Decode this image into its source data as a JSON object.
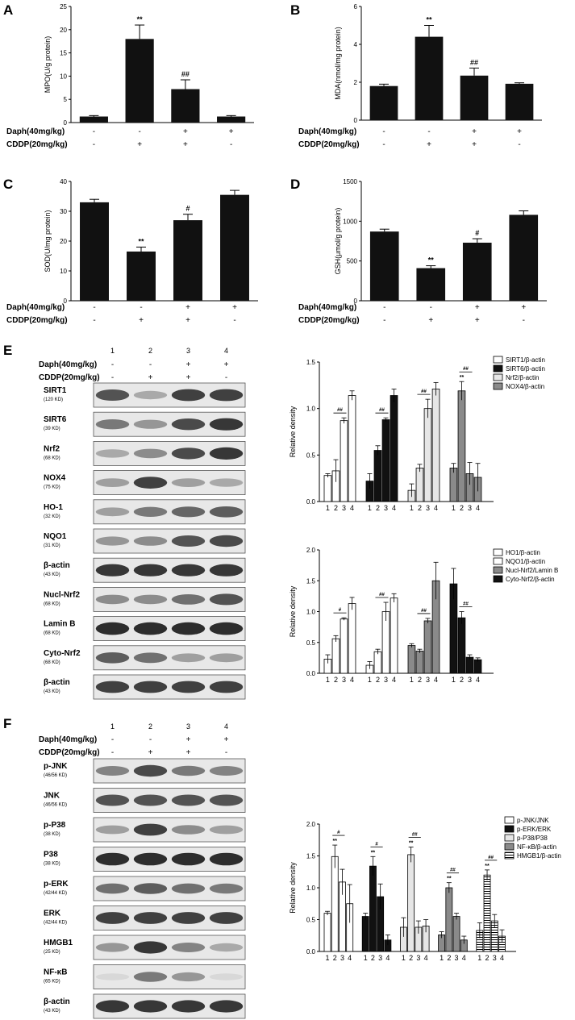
{
  "conditions": {
    "daph_label": "Daph(40mg/kg)",
    "cddp_label": "CDDP(20mg/kg)",
    "daph_signs": [
      "-",
      "-",
      "+",
      "+"
    ],
    "cddp_signs": [
      "-",
      "+",
      "+",
      "-"
    ],
    "lane_numbers": [
      "1",
      "2",
      "3",
      "4"
    ]
  },
  "chart_data": [
    {
      "id": "A",
      "type": "bar",
      "panel_label": "A",
      "ylabel": "MPO(U/g protein)",
      "ylim": [
        0,
        25
      ],
      "yticks": [
        0,
        5,
        10,
        15,
        20,
        25
      ],
      "values": [
        1.3,
        18.0,
        7.2,
        1.3
      ],
      "errors": [
        0.2,
        3.0,
        2.0,
        0.2
      ],
      "marks": [
        "",
        "**",
        "##",
        ""
      ]
    },
    {
      "id": "B",
      "type": "bar",
      "panel_label": "B",
      "ylabel": "MDA(nmol/mg protein)",
      "ylim": [
        0,
        6
      ],
      "yticks": [
        0,
        2,
        4,
        6
      ],
      "values": [
        1.8,
        4.4,
        2.35,
        1.92
      ],
      "errors": [
        0.1,
        0.6,
        0.4,
        0.05
      ],
      "marks": [
        "",
        "**",
        "##",
        ""
      ]
    },
    {
      "id": "C",
      "type": "bar",
      "panel_label": "C",
      "ylabel": "SOD(U/mg protein)",
      "ylim": [
        0,
        40
      ],
      "yticks": [
        0,
        10,
        20,
        30,
        40
      ],
      "values": [
        33,
        16.5,
        27,
        35.5
      ],
      "errors": [
        1.0,
        1.5,
        2.0,
        1.5
      ],
      "marks": [
        "",
        "**",
        "#",
        ""
      ]
    },
    {
      "id": "D",
      "type": "bar",
      "panel_label": "D",
      "ylabel": "GSH(μmol/g protein)",
      "ylim": [
        0,
        1500
      ],
      "yticks": [
        0,
        500,
        1000,
        1500
      ],
      "values": [
        870,
        410,
        730,
        1080
      ],
      "errors": [
        30,
        30,
        50,
        50
      ],
      "marks": [
        "",
        "**",
        "#",
        ""
      ]
    },
    {
      "id": "E1",
      "type": "bar",
      "ylabel": "Relative density",
      "ylim": [
        0,
        1.5
      ],
      "yticks": [
        0.0,
        0.5,
        1.0,
        1.5
      ],
      "categories": [
        "1",
        "2",
        "3",
        "4"
      ],
      "series": [
        {
          "name": "SIRT1/β-actin",
          "pattern": "white",
          "values": [
            0.28,
            0.33,
            0.87,
            1.14
          ],
          "errors": [
            0.02,
            0.12,
            0.03,
            0.05
          ],
          "marks": [
            "",
            "",
            "",
            ""
          ],
          "bracket": "##"
        },
        {
          "name": "SIRT6/β-actin",
          "pattern": "black",
          "values": [
            0.22,
            0.55,
            0.88,
            1.14
          ],
          "errors": [
            0.08,
            0.05,
            0.02,
            0.07
          ],
          "marks": [
            "",
            "",
            "",
            ""
          ],
          "bracket": "##"
        },
        {
          "name": "Nrf2/β-actin",
          "pattern": "lightgray",
          "values": [
            0.12,
            0.36,
            1.0,
            1.21
          ],
          "errors": [
            0.07,
            0.04,
            0.1,
            0.07
          ],
          "marks": [
            "",
            "",
            "",
            ""
          ],
          "bracket": "##"
        },
        {
          "name": "NOX4/β-actin",
          "pattern": "gray",
          "values": [
            0.36,
            1.19,
            0.3,
            0.26
          ],
          "errors": [
            0.05,
            0.1,
            0.12,
            0.15
          ],
          "marks": [
            "",
            "**",
            "",
            ""
          ],
          "bracket": "##"
        }
      ]
    },
    {
      "id": "E2",
      "type": "bar",
      "ylabel": "Relative density",
      "ylim": [
        0,
        2.0
      ],
      "yticks": [
        0.0,
        0.5,
        1.0,
        1.5,
        2.0
      ],
      "categories": [
        "1",
        "2",
        "3",
        "4"
      ],
      "series": [
        {
          "name": "HO1/β-actin",
          "pattern": "white",
          "values": [
            0.23,
            0.56,
            0.88,
            1.13
          ],
          "errors": [
            0.07,
            0.05,
            0.02,
            0.1
          ],
          "marks": [
            "",
            "",
            "",
            ""
          ],
          "bracket": "#"
        },
        {
          "name": "NQO1/β-actin",
          "pattern": "white",
          "values": [
            0.13,
            0.35,
            1.0,
            1.22
          ],
          "errors": [
            0.06,
            0.04,
            0.15,
            0.07
          ],
          "marks": [
            "",
            "",
            "",
            ""
          ],
          "bracket": "##"
        },
        {
          "name": "Nucl-Nrf2/Lamin B",
          "pattern": "gray",
          "values": [
            0.45,
            0.36,
            0.85,
            1.5
          ],
          "errors": [
            0.03,
            0.03,
            0.04,
            0.3
          ],
          "marks": [
            "",
            "",
            "",
            ""
          ],
          "bracket": "##"
        },
        {
          "name": "Cyto-Nrf2/β-actin",
          "pattern": "black",
          "values": [
            1.45,
            0.9,
            0.26,
            0.22
          ],
          "errors": [
            0.25,
            0.1,
            0.04,
            0.03
          ],
          "marks": [
            "",
            "",
            "",
            ""
          ],
          "bracket": "##"
        }
      ]
    },
    {
      "id": "F1",
      "type": "bar",
      "ylabel": "Relative density",
      "ylim": [
        0,
        2.0
      ],
      "yticks": [
        0.0,
        0.5,
        1.0,
        1.5,
        2.0
      ],
      "categories": [
        "1",
        "2",
        "3",
        "4"
      ],
      "series": [
        {
          "name": "p-JNK/JNK",
          "pattern": "white",
          "values": [
            0.6,
            1.49,
            1.09,
            0.75
          ],
          "errors": [
            0.03,
            0.18,
            0.2,
            0.3
          ],
          "marks": [
            "",
            "**",
            "",
            ""
          ],
          "bracket": "#"
        },
        {
          "name": "p-ERK/ERK",
          "pattern": "black",
          "values": [
            0.55,
            1.34,
            0.86,
            0.18
          ],
          "errors": [
            0.05,
            0.15,
            0.2,
            0.08
          ],
          "marks": [
            "",
            "**",
            "",
            ""
          ],
          "bracket": "#"
        },
        {
          "name": "p-P38/P38",
          "pattern": "lightgray",
          "values": [
            0.38,
            1.52,
            0.38,
            0.4
          ],
          "errors": [
            0.15,
            0.12,
            0.1,
            0.1
          ],
          "marks": [
            "",
            "**",
            "",
            ""
          ],
          "bracket": "##"
        },
        {
          "name": "NF-κB/β-actin",
          "pattern": "gray",
          "values": [
            0.26,
            1.0,
            0.55,
            0.18
          ],
          "errors": [
            0.05,
            0.08,
            0.05,
            0.06
          ],
          "marks": [
            "",
            "**",
            "",
            ""
          ],
          "bracket": "##"
        },
        {
          "name": "HMGB1/β-actin",
          "pattern": "hlines",
          "values": [
            0.33,
            1.2,
            0.48,
            0.24
          ],
          "errors": [
            0.12,
            0.08,
            0.1,
            0.1
          ],
          "marks": [
            "",
            "**",
            "",
            ""
          ],
          "bracket": "##"
        }
      ]
    }
  ],
  "blots": {
    "E": {
      "panel_label": "E",
      "rows": [
        {
          "label": "SIRT1",
          "kd": "(120 KD)",
          "intensity": [
            0.75,
            0.3,
            0.85,
            0.85
          ]
        },
        {
          "label": "SIRT6",
          "kd": "(39 KD)",
          "intensity": [
            0.55,
            0.4,
            0.8,
            0.9
          ]
        },
        {
          "label": "Nrf2",
          "kd": "(68 KD)",
          "intensity": [
            0.3,
            0.45,
            0.8,
            0.9
          ]
        },
        {
          "label": "NOX4",
          "kd": "(75 KD)",
          "intensity": [
            0.35,
            0.85,
            0.35,
            0.3
          ]
        },
        {
          "label": "HO-1",
          "kd": "(32 KD)",
          "intensity": [
            0.35,
            0.55,
            0.65,
            0.7
          ]
        },
        {
          "label": "NQO1",
          "kd": "(31 KD)",
          "intensity": [
            0.4,
            0.45,
            0.75,
            0.8
          ]
        },
        {
          "label": "β-actin",
          "kd": "(43 KD)",
          "intensity": [
            0.9,
            0.9,
            0.9,
            0.9
          ]
        },
        {
          "label": "Nucl-Nrf2",
          "kd": "(68 KD)",
          "intensity": [
            0.45,
            0.45,
            0.6,
            0.75
          ]
        },
        {
          "label": "Lamin B",
          "kd": "(68 KD)",
          "intensity": [
            0.95,
            0.95,
            0.95,
            0.95
          ]
        },
        {
          "label": "Cyto-Nrf2",
          "kd": "(68 KD)",
          "intensity": [
            0.7,
            0.6,
            0.35,
            0.35
          ]
        },
        {
          "label": "β-actin",
          "kd": "(43 KD)",
          "intensity": [
            0.85,
            0.85,
            0.85,
            0.85
          ]
        }
      ]
    },
    "F": {
      "panel_label": "F",
      "rows": [
        {
          "label": "p-JNK",
          "kd": "(46/56 KD)",
          "intensity": [
            0.5,
            0.8,
            0.55,
            0.5
          ]
        },
        {
          "label": "JNK",
          "kd": "(46/56 KD)",
          "intensity": [
            0.75,
            0.75,
            0.75,
            0.75
          ]
        },
        {
          "label": "p-P38",
          "kd": "(38 KD)",
          "intensity": [
            0.35,
            0.85,
            0.45,
            0.35
          ]
        },
        {
          "label": "P38",
          "kd": "(38 KD)",
          "intensity": [
            0.95,
            0.95,
            0.95,
            0.95
          ]
        },
        {
          "label": "p-ERK",
          "kd": "(42/44 KD)",
          "intensity": [
            0.6,
            0.7,
            0.6,
            0.55
          ]
        },
        {
          "label": "ERK",
          "kd": "(42/44 KD)",
          "intensity": [
            0.85,
            0.85,
            0.85,
            0.85
          ]
        },
        {
          "label": "HMGB1",
          "kd": "(25 KD)",
          "intensity": [
            0.4,
            0.9,
            0.5,
            0.3
          ]
        },
        {
          "label": "NF-κB",
          "kd": "(65 KD)",
          "intensity": [
            0.05,
            0.55,
            0.4,
            0.05
          ]
        },
        {
          "label": "β-actin",
          "kd": "(43 KD)",
          "intensity": [
            0.9,
            0.9,
            0.9,
            0.9
          ]
        }
      ]
    }
  }
}
